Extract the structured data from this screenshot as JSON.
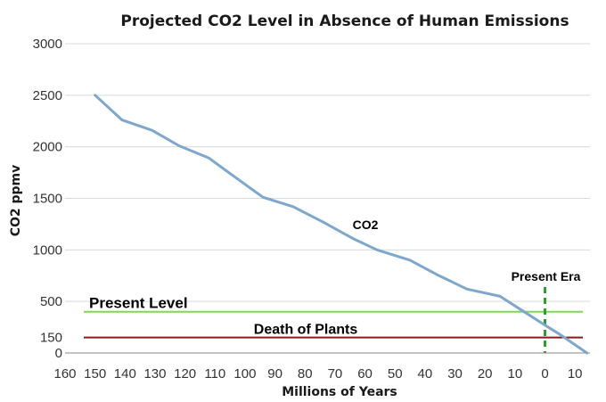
{
  "chart_data": {
    "type": "line",
    "title": "Projected CO2 Level in Absence of Human Emissions",
    "xlabel": "Millions of Years",
    "ylabel": "CO2 ppmv",
    "xlim": [
      160,
      -15
    ],
    "ylim": [
      0,
      3000
    ],
    "x_ticks": [
      "160",
      "150",
      "140",
      "130",
      "120",
      "110",
      "100",
      "90",
      "80",
      "70",
      "60",
      "50",
      "40",
      "30",
      "20",
      "10",
      "0",
      "10"
    ],
    "x_tick_values": [
      160,
      150,
      140,
      130,
      120,
      110,
      100,
      90,
      80,
      70,
      60,
      50,
      40,
      30,
      20,
      10,
      0,
      -10
    ],
    "y_ticks": [
      "3000",
      "2500",
      "2000",
      "1500",
      "1000",
      "500",
      "150",
      "0"
    ],
    "y_tick_values": [
      3000,
      2500,
      2000,
      1500,
      1000,
      500,
      150,
      0
    ],
    "series": [
      {
        "name": "CO2",
        "color": "#7da7cd",
        "x": [
          150,
          141,
          131,
          122,
          112,
          104,
          94,
          84,
          74,
          64,
          56,
          45,
          36,
          26,
          15,
          7,
          0,
          -5,
          -14
        ],
        "y": [
          2500,
          2260,
          2160,
          2010,
          1890,
          1720,
          1510,
          1420,
          1270,
          1110,
          1000,
          900,
          760,
          620,
          550,
          400,
          270,
          180,
          0
        ]
      }
    ],
    "reference_lines": [
      {
        "label": "Present Level",
        "value": 400,
        "color": "#7ed957"
      },
      {
        "label": "Death of Plants",
        "value": 150,
        "color": "#8b1a1a"
      }
    ],
    "vertical_marker": {
      "label": "Present Era",
      "x": 0,
      "color": "#2ca02c"
    },
    "series_label": "CO2",
    "grid": "horizontal"
  }
}
